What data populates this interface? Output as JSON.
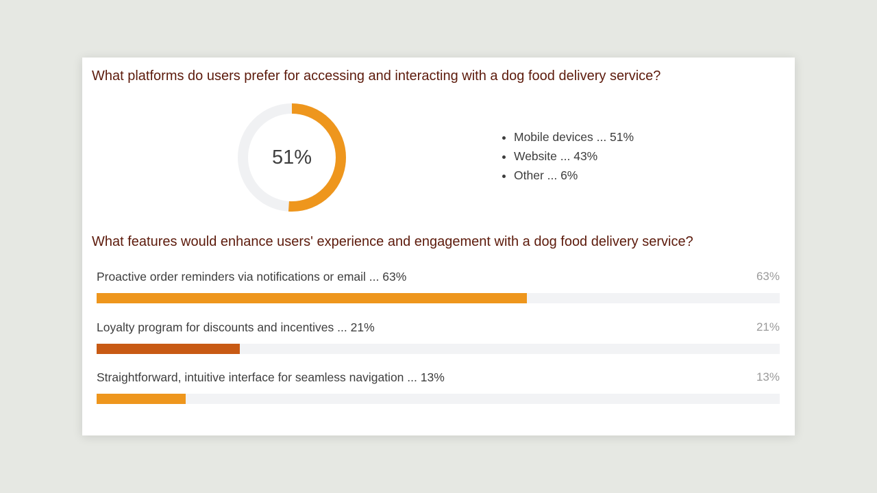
{
  "colors": {
    "background": "#e6e8e3",
    "card": "#ffffff",
    "title": "#5c1a0b",
    "accent_orange": "#ee961d",
    "accent_dark_orange": "#c85a14",
    "track": "#f2f3f5"
  },
  "chart_data": [
    {
      "type": "pie",
      "variant": "donut",
      "title": "What platforms do users prefer for accessing and interacting with a dog food delivery service?",
      "center_label": "51%",
      "highlighted_value": 51,
      "categories": [
        "Mobile devices",
        "Website",
        "Other"
      ],
      "values": [
        51,
        43,
        6
      ],
      "legend": [
        "Mobile devices ... 51%",
        "Website ... 43%",
        "Other ... 6%"
      ],
      "legend_position": "right",
      "colors": [
        "#ee961d",
        "#f0f1f3"
      ]
    },
    {
      "type": "bar",
      "orientation": "horizontal",
      "title": "What features would enhance users' experience and engagement with a dog food delivery service?",
      "categories": [
        "Proactive order reminders via notifications or email",
        "Loyalty program for discounts and incentives",
        "Straightforward, intuitive interface for seamless navigation"
      ],
      "values": [
        63,
        21,
        13
      ],
      "labels": [
        "Proactive order reminders via notifications or email ... 63%",
        "Loyalty program for discounts and incentives ... 21%",
        "Straightforward, intuitive interface for seamless navigation ... 13%"
      ],
      "value_labels": [
        "63%",
        "21%",
        "13%"
      ],
      "colors": [
        "#ee961d",
        "#c85a14",
        "#ee961d"
      ],
      "xlim": [
        0,
        100
      ]
    }
  ]
}
